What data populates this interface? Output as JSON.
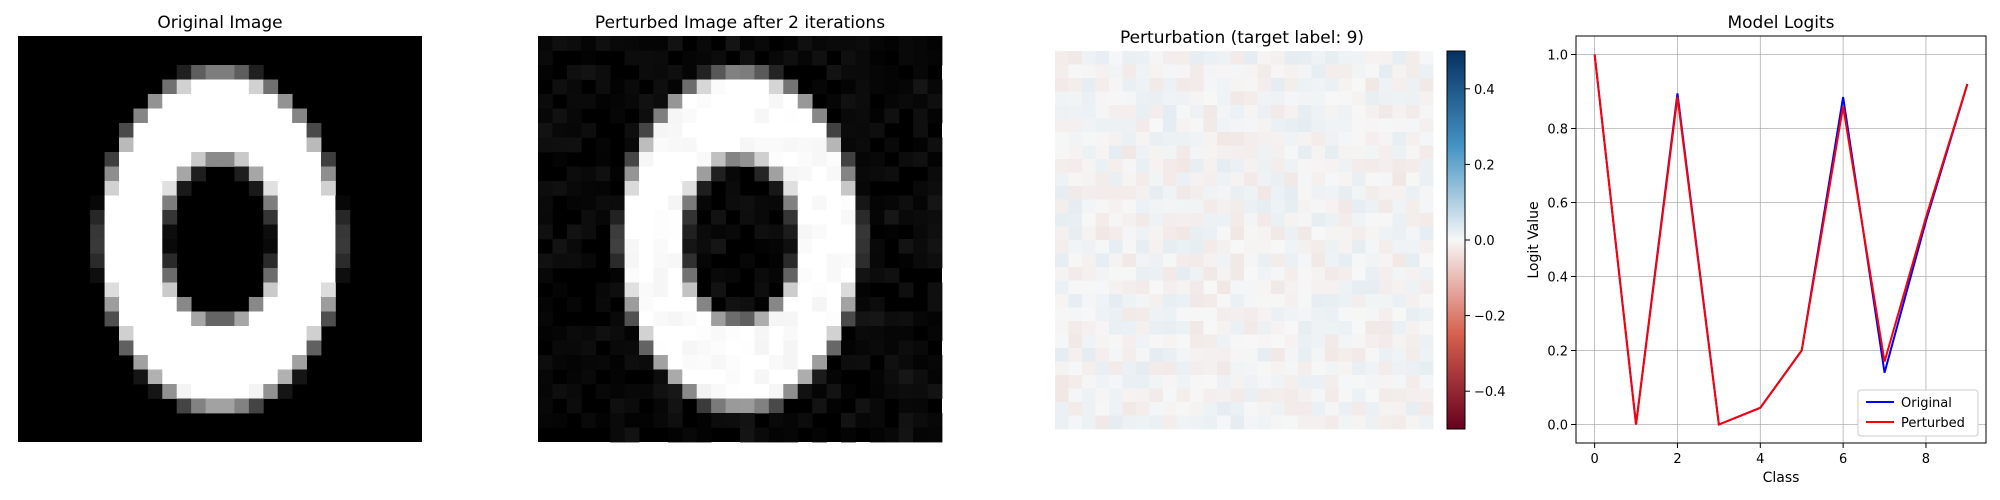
{
  "colors": {
    "original_line": "#0000ff",
    "perturbed_line": "#ff0000",
    "grid": "#b0b0b0",
    "cmap_gray": [
      "#000000",
      "#ffffff"
    ],
    "cmap_diverging": [
      "#67001f",
      "#d6604d",
      "#f7f7f7",
      "#4393c3",
      "#053061"
    ]
  },
  "chart_data": [
    {
      "type": "heatmap",
      "title": "Original Image",
      "colormap": "gray",
      "grid_size": 28,
      "axes": false,
      "content": "digit"
    },
    {
      "type": "heatmap",
      "title": "Perturbed Image after 2 iterations",
      "colormap": "gray",
      "grid_size": 28,
      "axes": false,
      "content": "digit"
    },
    {
      "type": "heatmap",
      "title": "Perturbation (target label: 9)",
      "colormap": "RdBu",
      "grid_size": 28,
      "axes": false,
      "value_range": [
        -0.5,
        0.5
      ],
      "colorbar": {
        "ticks": [
          0.4,
          0.2,
          0.0,
          -0.2,
          -0.4
        ],
        "tick_labels": [
          "0.4",
          "0.2",
          "0.0",
          "−0.2",
          "−0.4"
        ]
      }
    },
    {
      "type": "line",
      "title": "Model Logits",
      "xlabel": "Class",
      "ylabel": "Logit Value",
      "xlim": [
        -0.45,
        9.45
      ],
      "ylim": [
        -0.05,
        1.05
      ],
      "xticks": [
        0,
        2,
        4,
        6,
        8
      ],
      "yticks": [
        0.0,
        0.2,
        0.4,
        0.6,
        0.8,
        1.0
      ],
      "ytick_labels": [
        "0.0",
        "0.2",
        "0.4",
        "0.6",
        "0.8",
        "1.0"
      ],
      "grid": true,
      "legend": "lower-right",
      "x": [
        0,
        1,
        2,
        3,
        4,
        5,
        6,
        7,
        8,
        9
      ],
      "series": [
        {
          "name": "Original",
          "color": "#0000ff",
          "values": [
            1.0,
            0.0,
            0.895,
            0.0,
            0.045,
            0.2,
            0.885,
            0.14,
            0.55,
            0.92
          ]
        },
        {
          "name": "Perturbed",
          "color": "#ff0000",
          "values": [
            1.0,
            0.0,
            0.885,
            0.0,
            0.045,
            0.2,
            0.86,
            0.17,
            0.56,
            0.92
          ]
        }
      ]
    }
  ]
}
